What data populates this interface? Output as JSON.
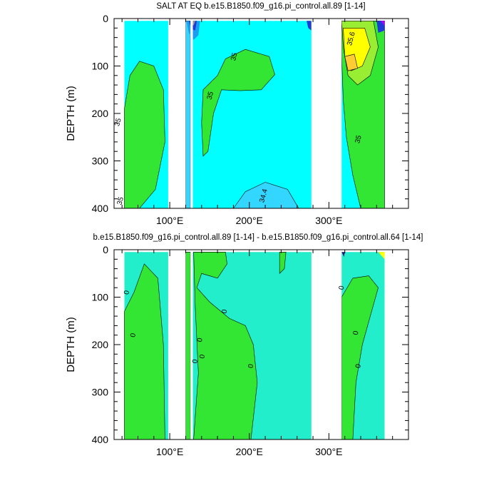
{
  "colors": {
    "background": "#ffffff",
    "frame": "#000000",
    "contour_line": "#000000",
    "cyan": "#00ffff",
    "light_blue": "#33d6ff",
    "mid_blue": "#1c9cf0",
    "deep_blue": "#1f3ad6",
    "navy": "#14147a",
    "purple": "#b000ff",
    "grey": "#9a9a9a",
    "green": "#33e633",
    "light_green": "#99ee33",
    "yellow": "#ffff00",
    "orange": "#ffcc33",
    "turquoise": "#22eecc",
    "diff_green": "#33e633",
    "diff_navy": "#14147a",
    "diff_yellow": "#ffff00"
  },
  "chart_data": [
    {
      "type": "heatmap",
      "subtype": "filled-contour",
      "title": "SALT AT EQ b.e15.B1850.f09_g16.pi_control.all.89 [1-14]",
      "xlabel": "",
      "ylabel": "DEPTH (m)",
      "xlim": [
        30,
        400
      ],
      "ylim": [
        400,
        0
      ],
      "x_ticks": [
        100,
        200,
        300
      ],
      "x_tick_labels": [
        "100°E",
        "200°E",
        "300°E"
      ],
      "y_ticks": [
        0,
        100,
        200,
        300,
        400
      ],
      "y_tick_labels": [
        "0",
        "100",
        "200",
        "300",
        "400"
      ],
      "data_x_range": [
        43,
        370
      ],
      "land_gaps": [
        [
          98,
          120
        ],
        [
          126,
          129
        ],
        [
          278,
          316
        ]
      ],
      "contour_labels": [
        {
          "text": "35",
          "x": 34,
          "y": 218
        },
        {
          "text": "35",
          "x": 37,
          "y": 384
        },
        {
          "text": "35",
          "x": 180,
          "y": 80
        },
        {
          "text": "35",
          "x": 150,
          "y": 162
        },
        {
          "text": "34.4",
          "x": 217,
          "y": 373
        },
        {
          "text": "35.6",
          "x": 327,
          "y": 42
        },
        {
          "text": "35",
          "x": 336,
          "y": 254
        }
      ]
    },
    {
      "type": "heatmap",
      "subtype": "filled-contour",
      "title": "b.e15.B1850.f09_g16.pi_control.all.89 [1-14] - b.e15.B1850.f09_g16.pi_control.all.64 [1-14]",
      "xlabel": "",
      "ylabel": "DEPTH (m)",
      "xlim": [
        30,
        400
      ],
      "ylim": [
        400,
        0
      ],
      "x_ticks": [
        100,
        200,
        300
      ],
      "x_tick_labels": [
        "100°E",
        "200°E",
        "300°E"
      ],
      "y_ticks": [
        0,
        100,
        200,
        300,
        400
      ],
      "y_tick_labels": [
        "0",
        "100",
        "200",
        "300",
        "400"
      ],
      "data_x_range": [
        43,
        370
      ],
      "land_gaps": [
        [
          98,
          120
        ],
        [
          126,
          129
        ],
        [
          278,
          316
        ]
      ],
      "contour_labels": [
        {
          "text": "0",
          "x": 45,
          "y": 90
        },
        {
          "text": "0",
          "x": 53,
          "y": 180
        },
        {
          "text": "0",
          "x": 168,
          "y": 130
        },
        {
          "text": "0",
          "x": 131,
          "y": 235
        },
        {
          "text": "0",
          "x": 137,
          "y": 190
        },
        {
          "text": "0",
          "x": 140,
          "y": 225
        },
        {
          "text": "0",
          "x": 201,
          "y": 245
        },
        {
          "text": "0",
          "x": 315,
          "y": 80
        },
        {
          "text": "0",
          "x": 333,
          "y": 175
        },
        {
          "text": "0",
          "x": 336,
          "y": 245
        }
      ]
    }
  ]
}
